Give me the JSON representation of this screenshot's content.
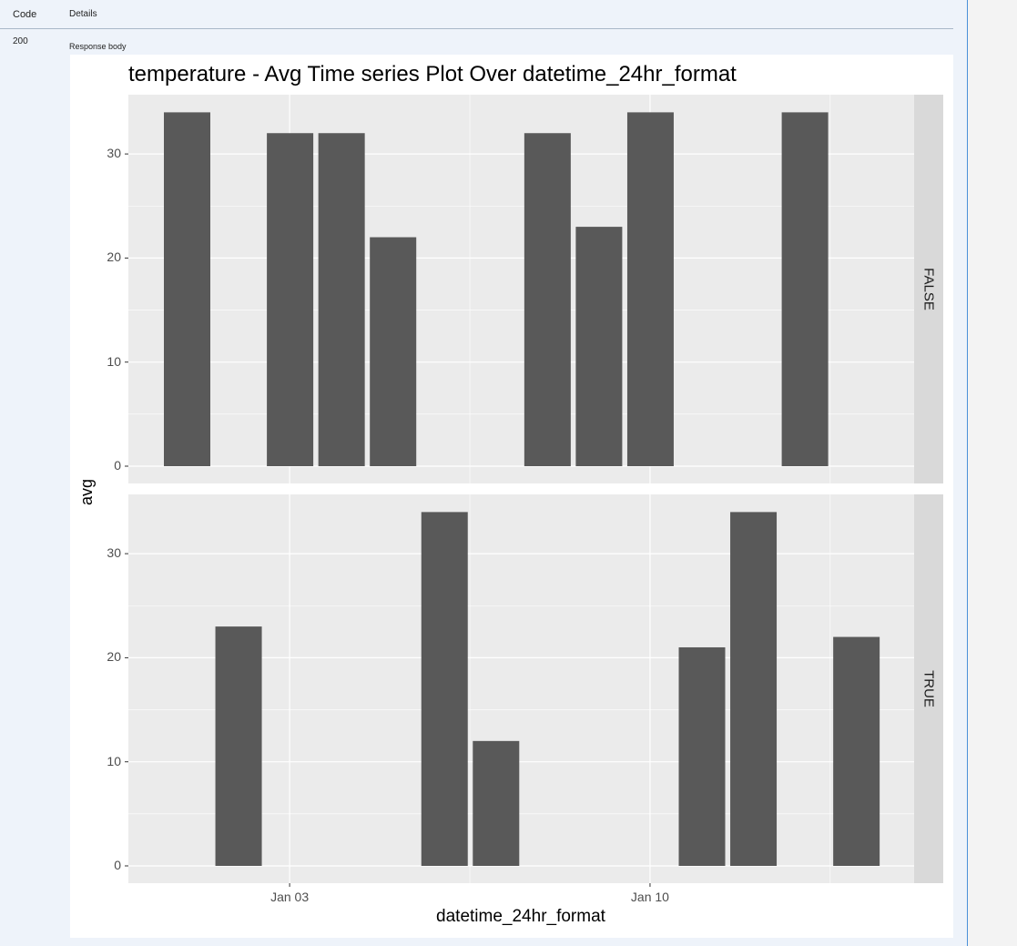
{
  "header": {
    "code_label": "Code",
    "details_label": "Details"
  },
  "response": {
    "status_code": "200",
    "body_label": "Response body"
  },
  "chart_data": {
    "type": "bar",
    "title": "temperature - Avg Time series Plot Over datetime_24hr_format",
    "xlabel": "datetime_24hr_format",
    "ylabel": "avg",
    "x_ticks": [
      "Jan 03",
      "Jan 10"
    ],
    "y_ticks": [
      0,
      10,
      20,
      30
    ],
    "ylim": [
      0,
      34
    ],
    "grid": true,
    "bar_color": "#595959",
    "panel_background": "#ebebeb",
    "strip_background": "#d9d9d9",
    "facets": [
      {
        "label": "FALSE",
        "bars": [
          {
            "x": "2025-01-01",
            "y": 34
          },
          {
            "x": "2025-01-03",
            "y": 32
          },
          {
            "x": "2025-01-04",
            "y": 32
          },
          {
            "x": "2025-01-05",
            "y": 22
          },
          {
            "x": "2025-01-08",
            "y": 32
          },
          {
            "x": "2025-01-09",
            "y": 23
          },
          {
            "x": "2025-01-10",
            "y": 34
          },
          {
            "x": "2025-01-13",
            "y": 34
          }
        ]
      },
      {
        "label": "TRUE",
        "bars": [
          {
            "x": "2025-01-02",
            "y": 23
          },
          {
            "x": "2025-01-06",
            "y": 34
          },
          {
            "x": "2025-01-07",
            "y": 12
          },
          {
            "x": "2025-01-11",
            "y": 21
          },
          {
            "x": "2025-01-12",
            "y": 34
          },
          {
            "x": "2025-01-14",
            "y": 22
          }
        ]
      }
    ]
  }
}
